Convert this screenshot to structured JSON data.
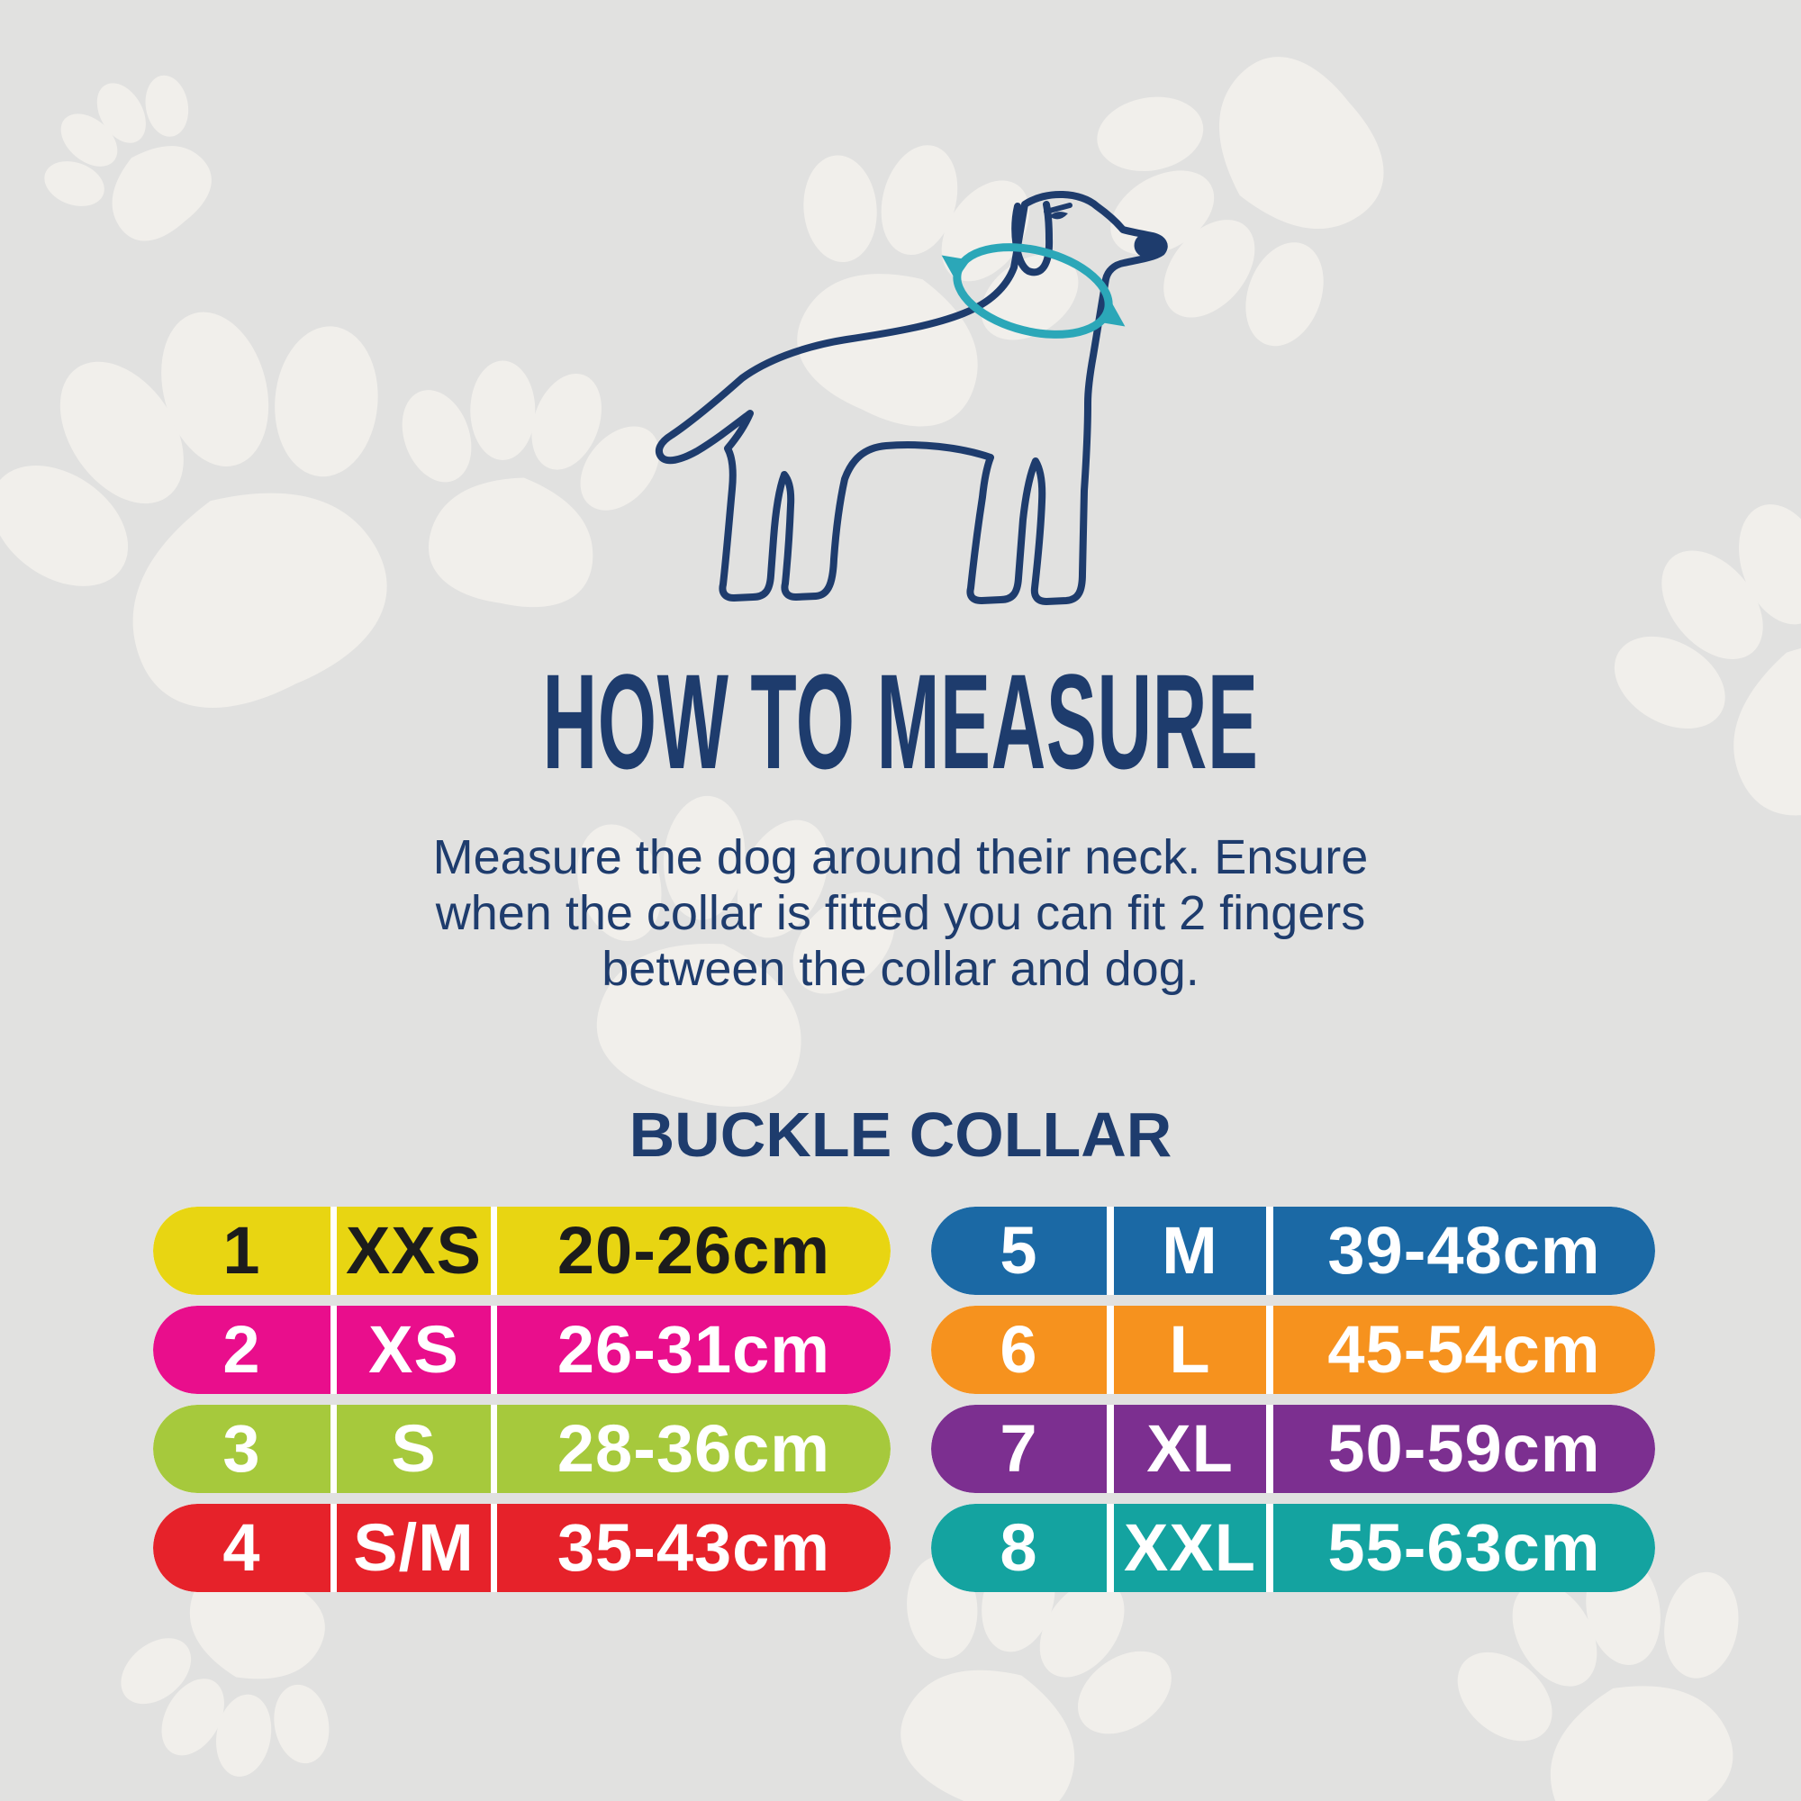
{
  "header": {
    "title": "HOW TO MEASURE"
  },
  "instructions": {
    "lines": [
      "Measure the dog around their neck. Ensure",
      "when the collar is fitted you can fit 2 fingers",
      "between the collar and dog."
    ]
  },
  "table": {
    "heading": "BUCKLE COLLAR",
    "left_rows": [
      {
        "number": "1",
        "size": "XXS",
        "range": "20-26cm",
        "color": "#e8d512",
        "text_color": "#1c1c1c"
      },
      {
        "number": "2",
        "size": "XS",
        "range": "26-31cm",
        "color": "#e90e8c",
        "text_color": "#ffffff"
      },
      {
        "number": "3",
        "size": "S",
        "range": "28-36cm",
        "color": "#a6c93c",
        "text_color": "#ffffff"
      },
      {
        "number": "4",
        "size": "S/M",
        "range": "35-43cm",
        "color": "#e6222a",
        "text_color": "#ffffff"
      }
    ],
    "right_rows": [
      {
        "number": "5",
        "size": "M",
        "range": "39-48cm",
        "color": "#1b69a5",
        "text_color": "#ffffff"
      },
      {
        "number": "6",
        "size": "L",
        "range": "45-54cm",
        "color": "#f6921e",
        "text_color": "#ffffff"
      },
      {
        "number": "7",
        "size": "XL",
        "range": "50-59cm",
        "color": "#7c2f90",
        "text_color": "#ffffff"
      },
      {
        "number": "8",
        "size": "XXL",
        "range": "55-63cm",
        "color": "#14a3a0",
        "text_color": "#ffffff"
      }
    ]
  },
  "illustration": {
    "name": "dog-side-outline-with-measuring-collar",
    "outline_color": "#1e3c6d",
    "collar_color": "#2ba7b8"
  },
  "theme": {
    "background": "#e1e1e0",
    "paw_print": "#f1efeb",
    "heading_color": "#1e3c6d",
    "segment_gap": "#ffffff"
  }
}
